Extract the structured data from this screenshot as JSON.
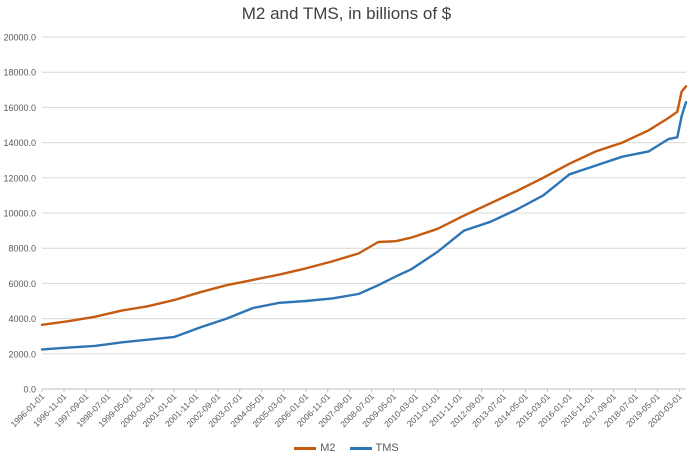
{
  "chart_data": {
    "type": "line",
    "title": "M2 and TMS, in billions of $",
    "xlabel": "",
    "ylabel": "",
    "ylim": [
      0,
      20000
    ],
    "yticks": [
      "0.0",
      "2000.0",
      "4000.0",
      "6000.0",
      "8000.0",
      "10000.0",
      "12000.0",
      "14000.0",
      "16000.0",
      "18000.0",
      "20000.0"
    ],
    "grid": true,
    "legend_position": "bottom",
    "x_tick_labels": [
      "1996-01-01",
      "1996-11-01",
      "1997-09-01",
      "1998-07-01",
      "1999-05-01",
      "2000-03-01",
      "2001-01-01",
      "2001-11-01",
      "2002-09-01",
      "2003-07-01",
      "2004-05-01",
      "2005-03-01",
      "2006-01-01",
      "2006-11-01",
      "2007-09-01",
      "2008-07-01",
      "2009-05-01",
      "2010-03-01",
      "2011-01-01",
      "2011-11-01",
      "2012-09-01",
      "2013-07-01",
      "2014-05-01",
      "2015-03-01",
      "2016-01-01",
      "2016-11-01",
      "2017-09-01",
      "2018-07-01",
      "2019-05-01",
      "2020-03-01"
    ],
    "x": [
      "1996-01",
      "1997-01",
      "1998-01",
      "1999-01",
      "2000-01",
      "2001-01",
      "2002-01",
      "2003-01",
      "2004-01",
      "2005-01",
      "2006-01",
      "2007-01",
      "2008-01",
      "2008-10",
      "2009-06",
      "2010-01",
      "2011-01",
      "2012-01",
      "2013-01",
      "2014-01",
      "2015-01",
      "2016-01",
      "2017-01",
      "2018-01",
      "2019-01",
      "2019-10",
      "2020-02",
      "2020-04",
      "2020-06"
    ],
    "series": [
      {
        "name": "M2",
        "color": "#C55A11",
        "values": [
          3650,
          3850,
          4100,
          4450,
          4700,
          5050,
          5500,
          5900,
          6200,
          6500,
          6850,
          7250,
          7700,
          8350,
          8400,
          8600,
          9100,
          9850,
          10550,
          11250,
          12000,
          12800,
          13500,
          14000,
          14700,
          15400,
          15750,
          16900,
          17200
        ]
      },
      {
        "name": "TMS",
        "color": "#2E75B6",
        "values": [
          2250,
          2350,
          2450,
          2650,
          2800,
          2950,
          3500,
          4000,
          4600,
          4900,
          5000,
          5150,
          5400,
          5900,
          6400,
          6800,
          7800,
          9000,
          9500,
          10200,
          11000,
          12200,
          12700,
          13200,
          13500,
          14200,
          14300,
          15500,
          16300
        ]
      }
    ]
  }
}
